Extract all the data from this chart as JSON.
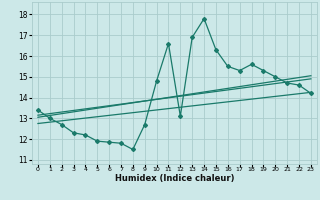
{
  "xlabel": "Humidex (Indice chaleur)",
  "background_color": "#cce8e8",
  "grid_color": "#aacccc",
  "line_color": "#1a7a6a",
  "xlim": [
    -0.5,
    23.5
  ],
  "ylim": [
    10.8,
    18.6
  ],
  "yticks": [
    11,
    12,
    13,
    14,
    15,
    16,
    17,
    18
  ],
  "xtick_labels": [
    "0",
    "1",
    "2",
    "3",
    "4",
    "5",
    "6",
    "7",
    "8",
    "9",
    "10",
    "11",
    "12",
    "13",
    "14",
    "15",
    "16",
    "17",
    "18",
    "19",
    "20",
    "21",
    "22",
    "23"
  ],
  "main_x": [
    0,
    1,
    2,
    3,
    4,
    5,
    6,
    7,
    8,
    9,
    10,
    11,
    12,
    13,
    14,
    15,
    16,
    17,
    18,
    19,
    20,
    21,
    22,
    23
  ],
  "main_y": [
    13.4,
    13.0,
    12.7,
    12.3,
    12.2,
    11.9,
    11.85,
    11.8,
    11.5,
    12.7,
    14.8,
    16.6,
    13.1,
    16.9,
    17.8,
    16.3,
    15.5,
    15.3,
    15.6,
    15.3,
    15.0,
    14.7,
    14.6,
    14.2
  ],
  "trend1_x": [
    0,
    23
  ],
  "trend1_y": [
    13.15,
    14.9
  ],
  "trend2_x": [
    0,
    23
  ],
  "trend2_y": [
    13.05,
    15.05
  ],
  "trend3_x": [
    0,
    23
  ],
  "trend3_y": [
    12.75,
    14.25
  ]
}
